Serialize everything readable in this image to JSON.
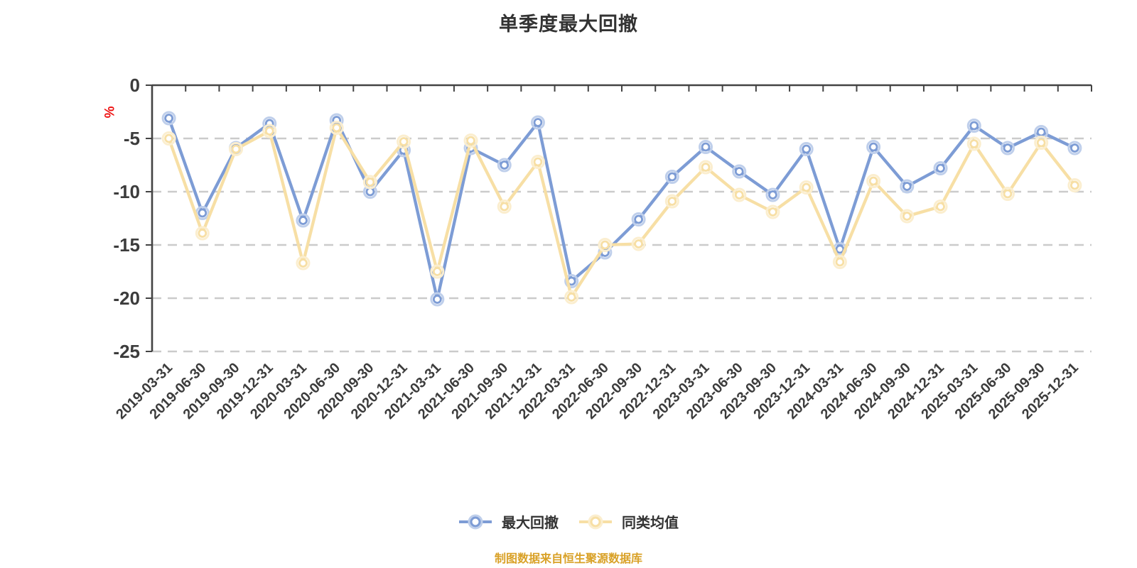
{
  "chart_data": {
    "type": "line",
    "title": "单季度最大回撤",
    "ylabel": "%",
    "xlabel": "",
    "x": [
      "2019-03-31",
      "2019-06-30",
      "2019-09-30",
      "2019-12-31",
      "2020-03-31",
      "2020-06-30",
      "2020-09-30",
      "2020-12-31",
      "2021-03-31",
      "2021-06-30",
      "2021-09-30",
      "2021-12-31",
      "2022-03-31",
      "2022-06-30",
      "2022-09-30",
      "2022-12-31",
      "2023-03-31",
      "2023-06-30",
      "2023-09-30",
      "2023-12-31",
      "2024-03-31",
      "2024-06-30",
      "2024-09-30",
      "2024-12-31",
      "2025-03-31",
      "2025-06-30",
      "2025-09-30",
      "2025-12-31"
    ],
    "series": [
      {
        "name": "最大回撤",
        "color": "#7d9cd5",
        "halo_color": "#bfcfeb",
        "values": [
          -3.1,
          -12.0,
          -5.9,
          -3.6,
          -12.7,
          -3.3,
          -10.0,
          -6.1,
          -20.1,
          -5.9,
          -7.5,
          -3.5,
          -18.4,
          -15.7,
          -12.6,
          -8.6,
          -5.8,
          -8.1,
          -10.3,
          -6.0,
          -15.4,
          -5.8,
          -9.5,
          -7.8,
          -3.8,
          -5.9,
          -4.4,
          -5.9
        ]
      },
      {
        "name": "同类均值",
        "color": "#f7dfa5",
        "halo_color": "#fbeecf",
        "values": [
          -5.0,
          -13.9,
          -6.0,
          -4.3,
          -16.7,
          -4.0,
          -9.1,
          -5.3,
          -17.5,
          -5.2,
          -11.4,
          -7.2,
          -19.9,
          -15.0,
          -14.9,
          -10.9,
          -7.7,
          -10.3,
          -11.9,
          -9.6,
          -16.6,
          -9.0,
          -12.3,
          -11.4,
          -5.5,
          -10.2,
          -5.4,
          -9.4
        ]
      }
    ],
    "ylim": [
      -25,
      0
    ],
    "yticks": [
      0,
      -5,
      -10,
      -15,
      -20,
      -25
    ],
    "grid": true,
    "legend_position": "bottom",
    "source_note": "制图数据来自恒生聚源数据库",
    "palette": {
      "grid_line": "#cbcbcb",
      "axis_line": "#434343",
      "tick_label": "#3c3c3c",
      "title": "#333333",
      "ylabel": "#ee1111",
      "source_note": "#d9a127",
      "background": "#ffffff"
    }
  }
}
